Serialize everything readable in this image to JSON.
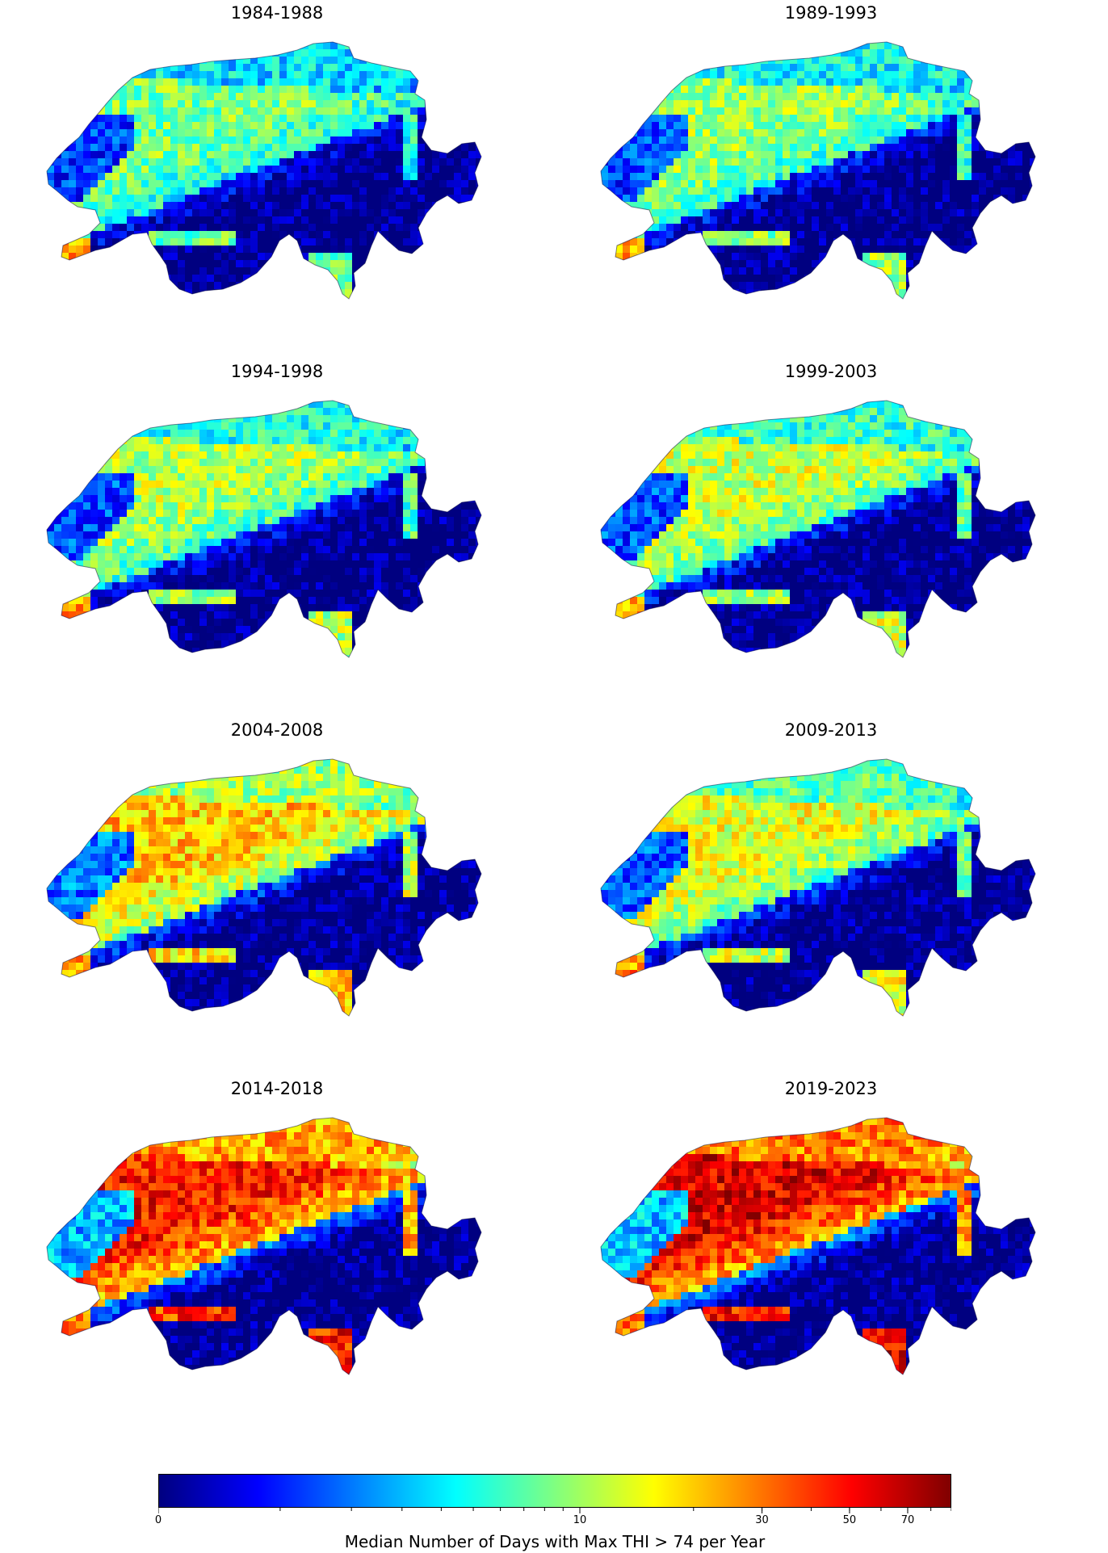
{
  "panels": [
    {
      "title": "1984-1988",
      "heat": 0.45
    },
    {
      "title": "1989-1993",
      "heat": 0.48
    },
    {
      "title": "1994-1998",
      "heat": 0.5
    },
    {
      "title": "1999-2003",
      "heat": 0.52
    },
    {
      "title": "2004-2008",
      "heat": 0.62
    },
    {
      "title": "2009-2013",
      "heat": 0.55
    },
    {
      "title": "2014-2018",
      "heat": 0.78
    },
    {
      "title": "2019-2023",
      "heat": 0.82
    }
  ],
  "colorbar": {
    "label": "Median Number of Days with Max THI > 74 per Year",
    "scale": "log",
    "min": 0,
    "max": 90,
    "ticks": [
      {
        "value": 0,
        "label": "0"
      },
      {
        "value": 10,
        "label": "10"
      },
      {
        "value": 30,
        "label": "30"
      },
      {
        "value": 50,
        "label": "50"
      },
      {
        "value": 70,
        "label": "70"
      }
    ],
    "colormap": "jet",
    "colors": [
      "#000080",
      "#0000ff",
      "#0080ff",
      "#00ffff",
      "#80ff80",
      "#ffff00",
      "#ff8000",
      "#ff0000",
      "#800000"
    ]
  }
}
